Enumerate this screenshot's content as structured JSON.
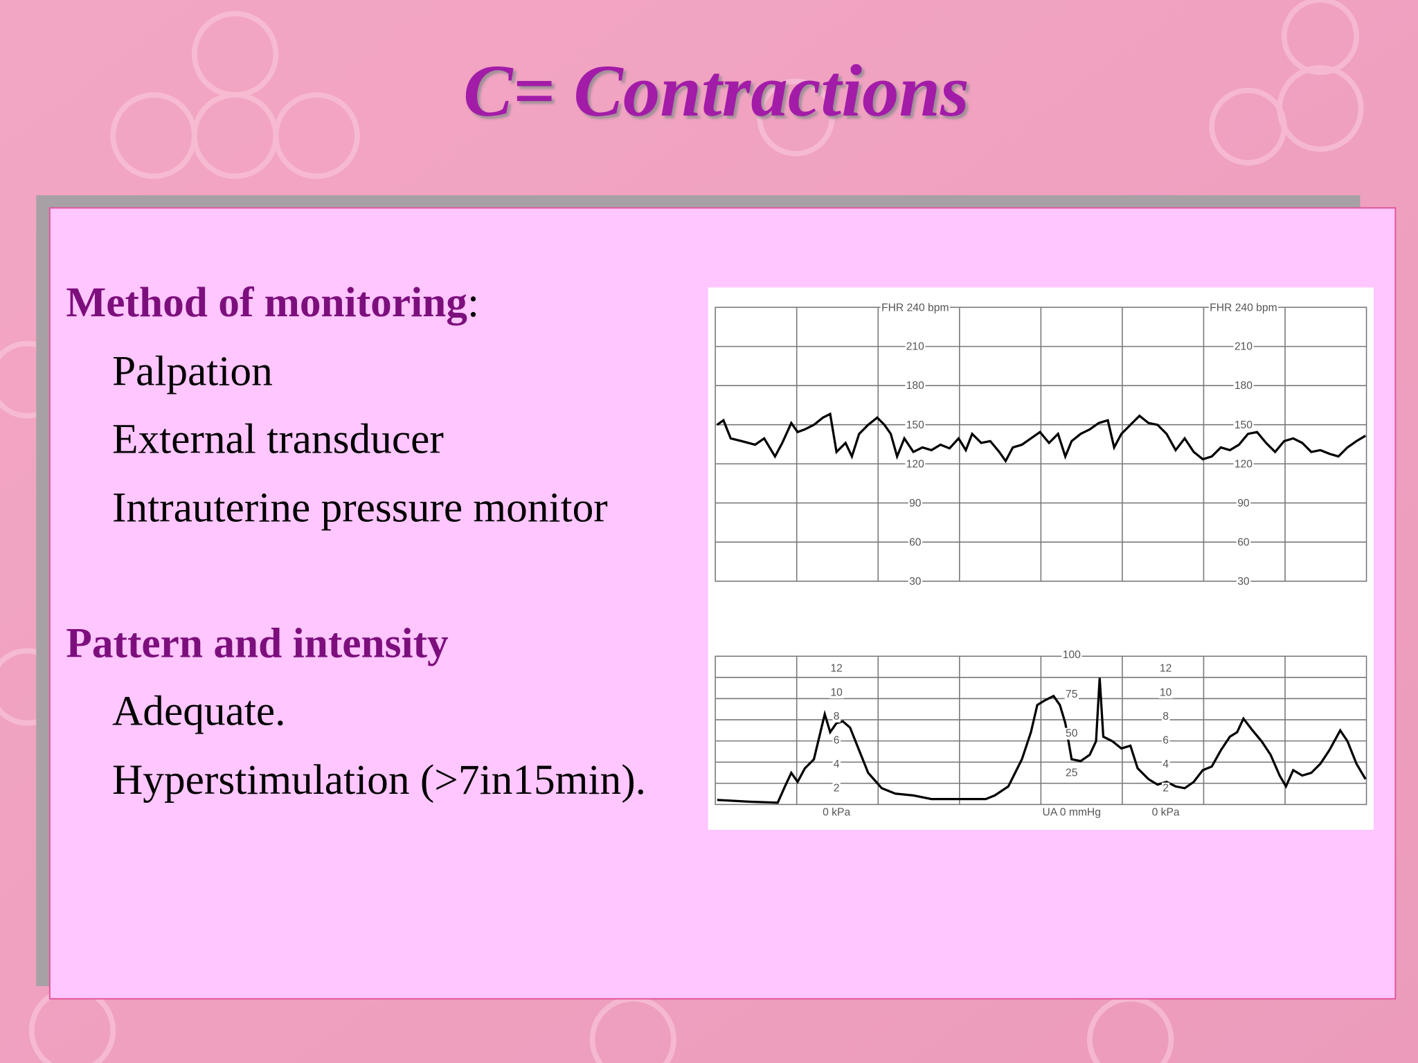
{
  "title": "C= Contractions",
  "sections": [
    {
      "heading": "Method of monitoring",
      "suffix": ":",
      "items": [
        "Palpation",
        "External transducer",
        "Intrauterine pressure monitor"
      ]
    },
    {
      "heading": "Pattern and intensity",
      "items": [
        "Adequate.",
        "Hyperstimulation (>7in15min)."
      ]
    }
  ],
  "ctg": {
    "fhr_label": "FHR 240 bpm",
    "fhr_scale": [
      "210",
      "180",
      "150",
      "120",
      "90",
      "60",
      "30"
    ],
    "toco_kpa_scale": [
      "12",
      "10",
      "8",
      "6",
      "4",
      "2",
      "0 kPa"
    ],
    "toco_mmhg_scale": [
      "100",
      "75",
      "50",
      "25",
      "UA 0 mmHg"
    ]
  }
}
